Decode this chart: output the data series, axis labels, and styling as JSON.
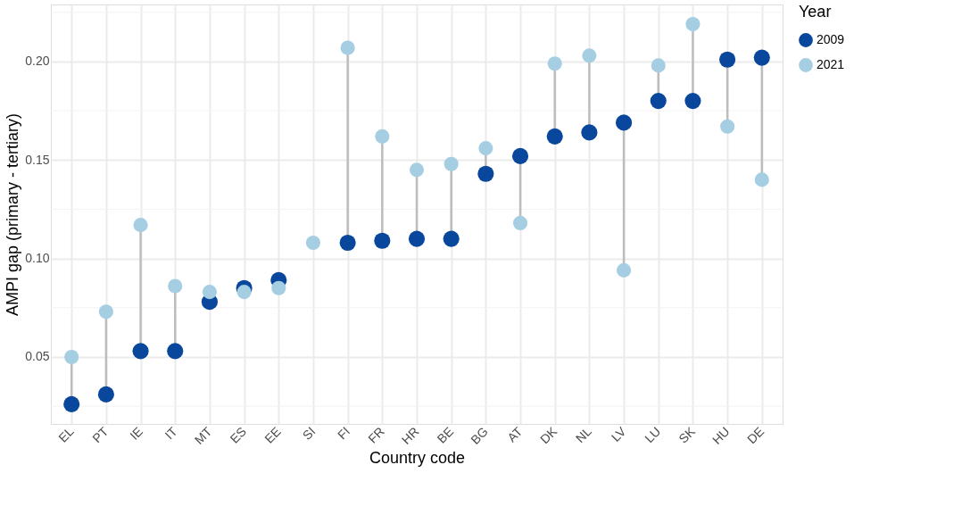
{
  "chart_data": {
    "type": "scatter",
    "xlabel": "Country code",
    "ylabel": "AMPI gap (primary - tertiary)",
    "legend_title": "Year",
    "categories": [
      "EL",
      "PT",
      "IE",
      "IT",
      "MT",
      "ES",
      "EE",
      "SI",
      "FI",
      "FR",
      "HR",
      "BE",
      "BG",
      "AT",
      "DK",
      "NL",
      "LV",
      "LU",
      "SK",
      "HU",
      "DE"
    ],
    "series": [
      {
        "name": "2009",
        "color": "#08479b",
        "values": [
          0.026,
          0.031,
          0.053,
          0.053,
          0.078,
          0.085,
          0.089,
          null,
          0.108,
          0.109,
          0.11,
          0.11,
          0.143,
          0.152,
          0.162,
          0.164,
          0.169,
          0.18,
          0.18,
          0.201,
          0.202
        ]
      },
      {
        "name": "2021",
        "color": "#a6cee3",
        "values": [
          0.05,
          0.073,
          0.117,
          0.086,
          0.083,
          0.083,
          0.085,
          0.108,
          0.207,
          0.162,
          0.145,
          0.148,
          0.156,
          0.118,
          0.199,
          0.203,
          0.094,
          0.198,
          0.219,
          0.167,
          0.14
        ]
      }
    ],
    "ylim": [
      0.016,
      0.229
    ],
    "yticks": [
      0.05,
      {
        "value": 0.1,
        "label": "0.10"
      },
      0.15,
      {
        "value": 0.2,
        "label": "0.20"
      }
    ],
    "grid": true,
    "legend": "right",
    "marker": "circle"
  }
}
